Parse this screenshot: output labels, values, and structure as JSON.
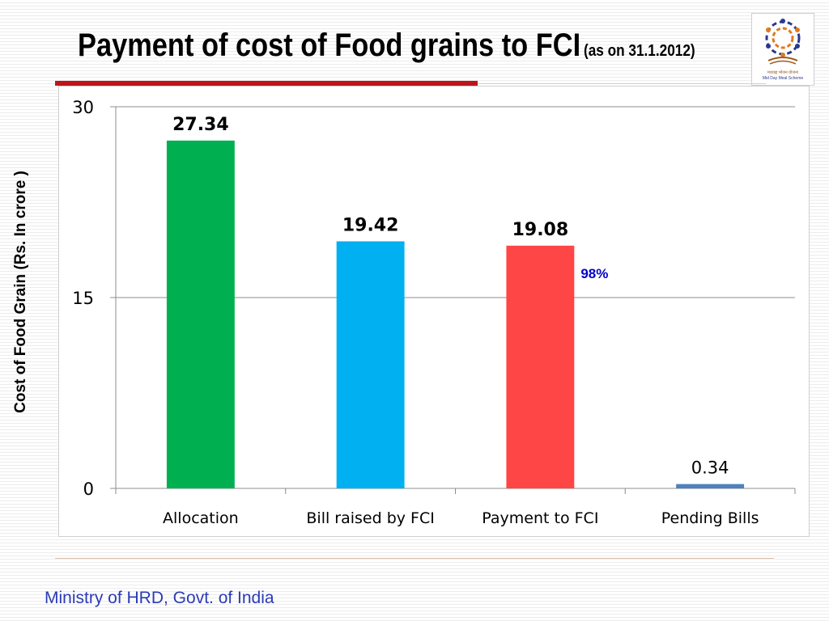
{
  "title": "Payment of cost of Food grains to FCI",
  "subtitle": "(as on 31.1.2012)",
  "logo": {
    "icon": "mid-day-meal-logo",
    "caption_hindi": "मध्याह्न भोजन योजना",
    "caption_english": "Mid Day Meal Scheme"
  },
  "footer": "Ministry of HRD, Govt. of India",
  "colors": {
    "allocation": "#00b050",
    "bill_raised": "#00b0f0",
    "payment": "#ff4646",
    "pending": "#4f81bd",
    "accent": "#c0141b",
    "annotation": "#0000cc",
    "footer": "#2b3bb5"
  },
  "chart_data": {
    "type": "bar",
    "title": "Payment of cost of Food grains to FCI",
    "ylabel": "Cost of Food Grain (Rs. In crore )",
    "xlabel": "",
    "categories": [
      "Allocation",
      "Bill raised by FCI",
      "Payment to FCI",
      "Pending Bills"
    ],
    "values": [
      27.34,
      19.42,
      19.08,
      0.34
    ],
    "value_labels": [
      "27.34",
      "19.42",
      "19.08",
      "0.34"
    ],
    "bar_colors": [
      "#00b050",
      "#00b0f0",
      "#ff4646",
      "#4f81bd"
    ],
    "ylim": [
      0,
      30
    ],
    "yticks": [
      0,
      15,
      30
    ],
    "ytick_labels": [
      "0",
      "15",
      "30"
    ],
    "grid": true,
    "annotations": [
      {
        "text": "98%",
        "category": "Payment to FCI",
        "color": "#0000cc"
      }
    ]
  }
}
